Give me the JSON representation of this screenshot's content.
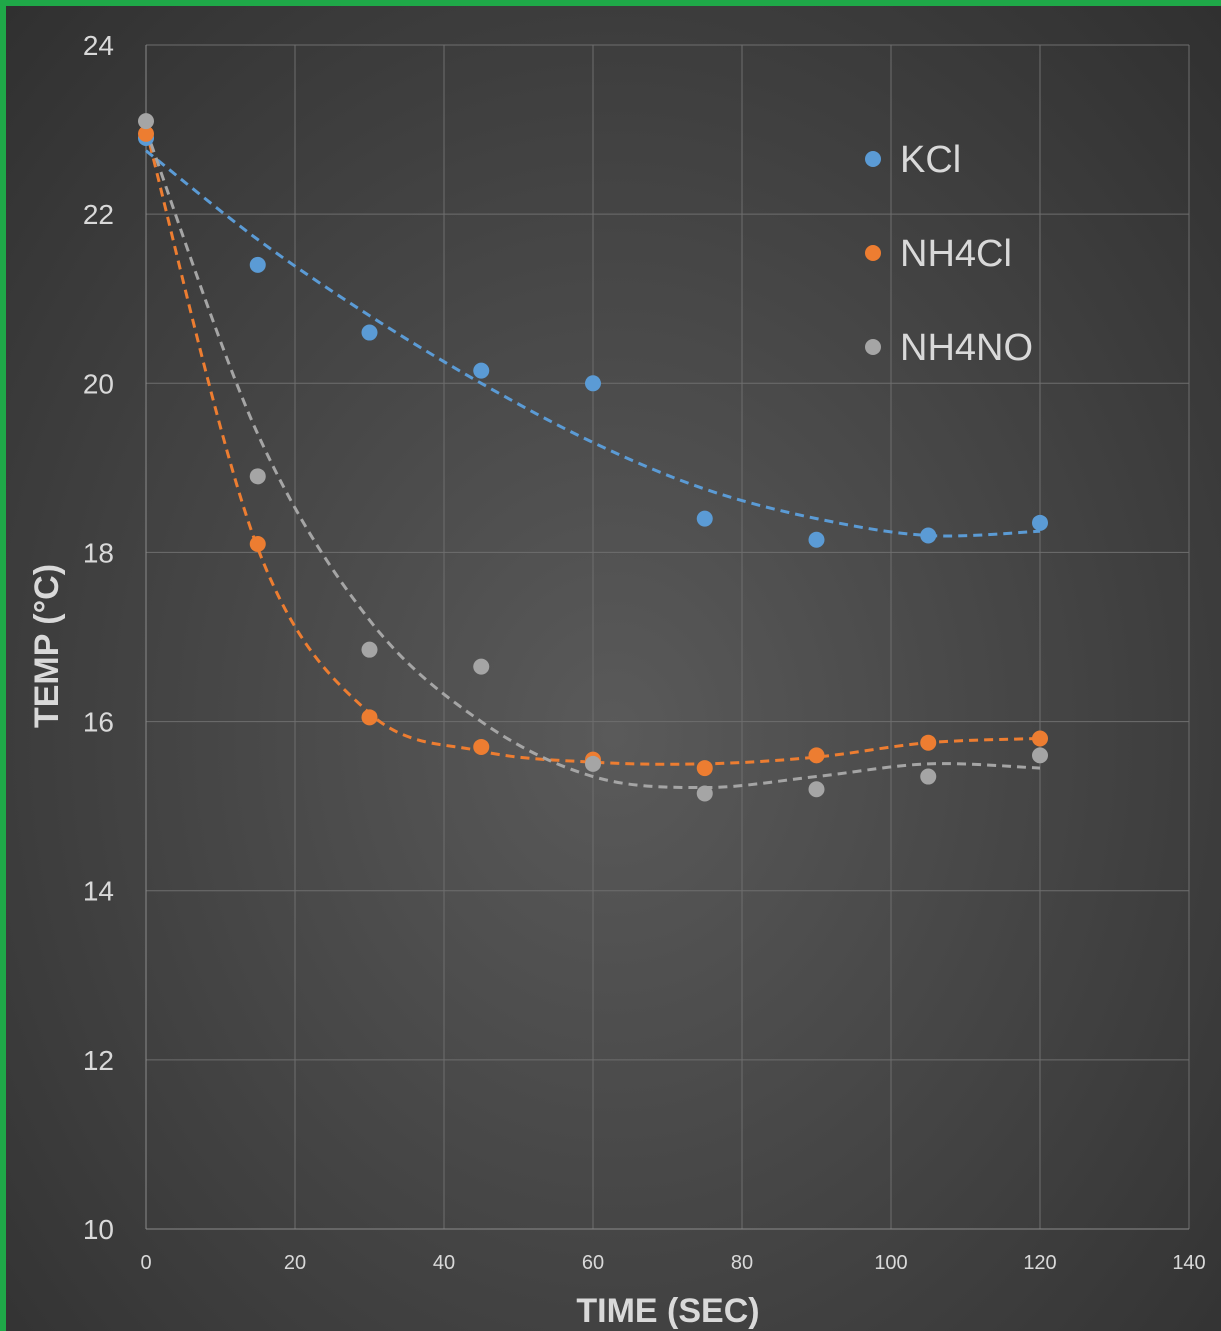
{
  "chart_data": {
    "type": "scatter",
    "title": "",
    "xlabel": "TIME (SEC)",
    "ylabel": "TEMP (°C)",
    "xlim": [
      0,
      140
    ],
    "ylim": [
      10,
      24
    ],
    "xticks": [
      "0",
      "20",
      "40",
      "60",
      "80",
      "100",
      "120",
      "140"
    ],
    "yticks": [
      "10",
      "12",
      "14",
      "16",
      "18",
      "20",
      "22",
      "24"
    ],
    "grid": true,
    "legend_position": "top-right",
    "trendline": "polynomial, dashed",
    "x": [
      0,
      15,
      30,
      45,
      60,
      75,
      90,
      105,
      120
    ],
    "series": [
      {
        "name": "KCl",
        "color": "#5b9bd5",
        "values": [
          22.9,
          21.4,
          20.6,
          20.15,
          20.0,
          18.4,
          18.15,
          18.2,
          18.35
        ]
      },
      {
        "name": "NH4Cl",
        "color": "#ed7d31",
        "values": [
          22.95,
          18.1,
          16.05,
          15.7,
          15.55,
          15.45,
          15.6,
          15.75,
          15.8
        ]
      },
      {
        "name": "NH4NO",
        "color": "#a5a5a5",
        "values": [
          23.1,
          18.9,
          16.85,
          16.65,
          15.5,
          15.15,
          15.2,
          15.35,
          15.6
        ]
      }
    ],
    "trend_values": [
      {
        "series": "KCl",
        "values": [
          22.75,
          21.7,
          20.8,
          20.0,
          19.3,
          18.75,
          18.4,
          18.2,
          18.25
        ]
      },
      {
        "series": "NH4Cl",
        "values": [
          23.0,
          18.05,
          16.1,
          15.65,
          15.52,
          15.5,
          15.58,
          15.75,
          15.8
        ]
      },
      {
        "series": "NH4NO",
        "values": [
          23.0,
          19.4,
          17.2,
          16.0,
          15.35,
          15.22,
          15.35,
          15.5,
          15.45
        ]
      }
    ]
  }
}
